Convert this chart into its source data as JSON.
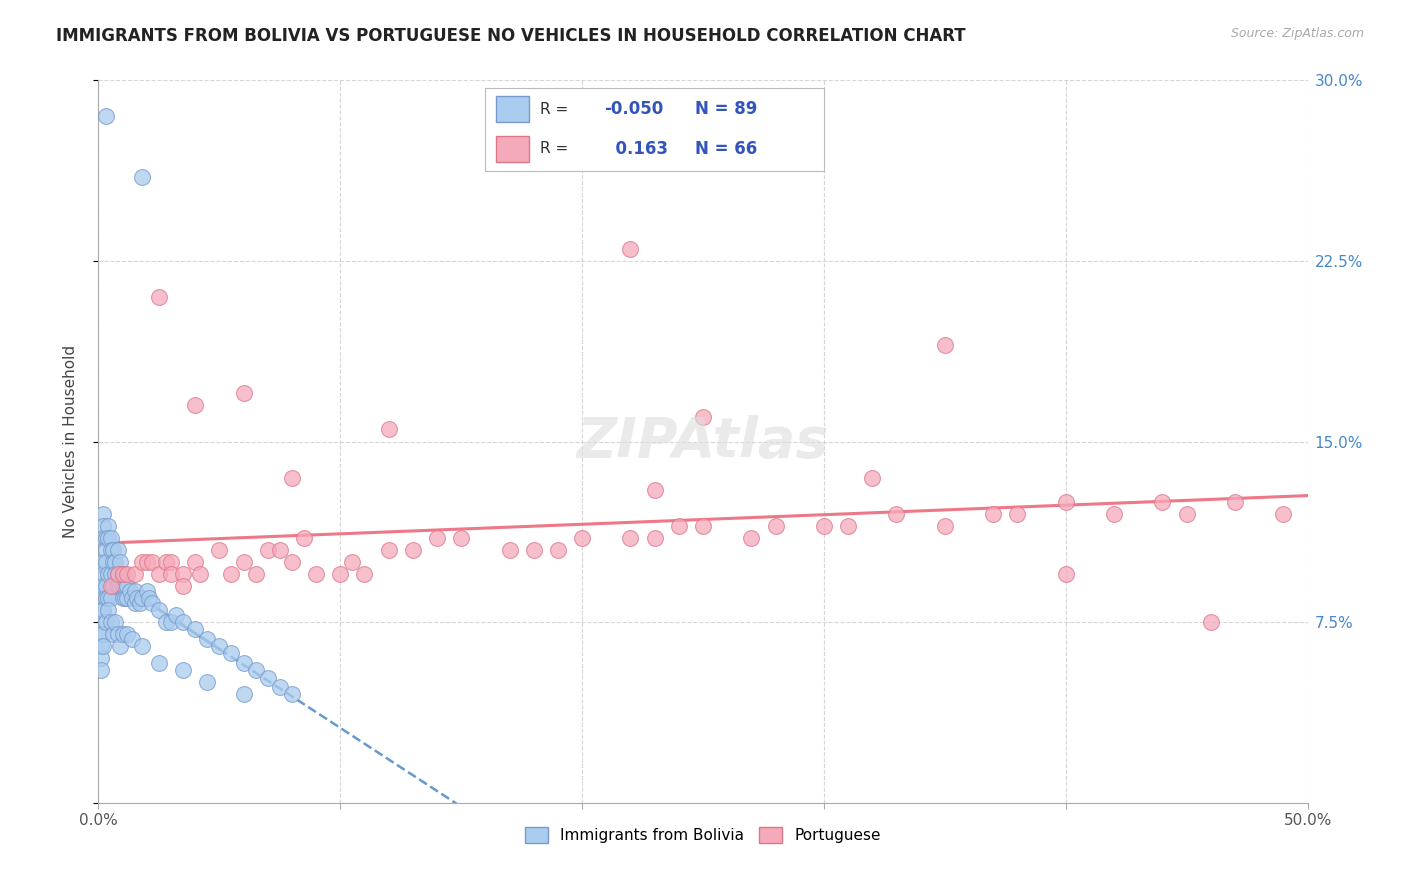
{
  "title": "IMMIGRANTS FROM BOLIVIA VS PORTUGUESE NO VEHICLES IN HOUSEHOLD CORRELATION CHART",
  "source": "Source: ZipAtlas.com",
  "ylabel": "No Vehicles in Household",
  "xlim": [
    0.0,
    50.0
  ],
  "ylim": [
    0.0,
    30.0
  ],
  "xticks": [
    0.0,
    10.0,
    20.0,
    30.0,
    40.0,
    50.0
  ],
  "yticks": [
    0.0,
    7.5,
    15.0,
    22.5,
    30.0
  ],
  "xticklabels": [
    "0.0%",
    "",
    "",
    "",
    "",
    "50.0%"
  ],
  "yticklabels_right": [
    "",
    "7.5%",
    "15.0%",
    "22.5%",
    "30.0%"
  ],
  "bolivia_color": "#aaccee",
  "portuguese_color": "#f5aabb",
  "bolivia_edge": "#7799cc",
  "portuguese_edge": "#dd7788",
  "bolivia_R": -0.05,
  "bolivia_N": 89,
  "portuguese_R": 0.163,
  "portuguese_N": 66,
  "bolivia_line_color": "#6699cc",
  "portuguese_line_color": "#ee7788",
  "legend_R_color": "#3355bb",
  "background_color": "#ffffff",
  "grid_color": "#cccccc",
  "watermark": "ZIPAtlas",
  "bolivia_x": [
    0.3,
    1.8,
    0.1,
    0.1,
    0.1,
    0.1,
    0.1,
    0.1,
    0.2,
    0.2,
    0.2,
    0.2,
    0.2,
    0.2,
    0.2,
    0.3,
    0.3,
    0.3,
    0.3,
    0.3,
    0.4,
    0.4,
    0.4,
    0.4,
    0.5,
    0.5,
    0.5,
    0.5,
    0.6,
    0.6,
    0.6,
    0.7,
    0.7,
    0.8,
    0.8,
    0.8,
    0.9,
    0.9,
    1.0,
    1.0,
    1.0,
    1.1,
    1.1,
    1.2,
    1.2,
    1.3,
    1.4,
    1.5,
    1.5,
    1.6,
    1.7,
    1.8,
    2.0,
    2.1,
    2.2,
    2.5,
    2.8,
    3.0,
    3.2,
    3.5,
    4.0,
    4.5,
    5.0,
    5.5,
    6.0,
    6.5,
    7.0,
    7.5,
    8.0,
    0.1,
    0.1,
    0.2,
    0.2,
    0.3,
    0.4,
    0.5,
    0.6,
    0.7,
    0.8,
    0.9,
    1.0,
    1.2,
    1.4,
    1.8,
    2.5,
    3.5,
    4.5,
    6.0
  ],
  "bolivia_y": [
    28.5,
    26.0,
    9.0,
    8.5,
    8.0,
    7.5,
    7.0,
    6.5,
    12.0,
    11.5,
    11.0,
    10.0,
    9.5,
    9.0,
    8.0,
    11.0,
    10.5,
    10.0,
    9.0,
    8.5,
    11.5,
    11.0,
    9.5,
    8.5,
    11.0,
    10.5,
    9.5,
    8.5,
    10.5,
    10.0,
    9.0,
    10.0,
    9.5,
    10.5,
    9.5,
    9.0,
    10.0,
    9.0,
    9.5,
    9.0,
    8.5,
    9.0,
    8.5,
    9.0,
    8.5,
    8.8,
    8.5,
    8.8,
    8.3,
    8.5,
    8.3,
    8.5,
    8.8,
    8.5,
    8.3,
    8.0,
    7.5,
    7.5,
    7.8,
    7.5,
    7.2,
    6.8,
    6.5,
    6.2,
    5.8,
    5.5,
    5.2,
    4.8,
    4.5,
    6.0,
    5.5,
    7.0,
    6.5,
    7.5,
    8.0,
    7.5,
    7.0,
    7.5,
    7.0,
    6.5,
    7.0,
    7.0,
    6.8,
    6.5,
    5.8,
    5.5,
    5.0,
    4.5
  ],
  "portuguese_x": [
    0.5,
    0.8,
    1.0,
    1.2,
    1.5,
    1.8,
    2.0,
    2.2,
    2.5,
    2.8,
    3.0,
    3.0,
    3.5,
    3.5,
    4.0,
    4.2,
    5.0,
    5.5,
    6.0,
    6.5,
    7.0,
    7.5,
    8.0,
    8.5,
    9.0,
    10.0,
    10.5,
    11.0,
    12.0,
    13.0,
    14.0,
    15.0,
    17.0,
    18.0,
    19.0,
    20.0,
    22.0,
    23.0,
    24.0,
    25.0,
    27.0,
    28.0,
    30.0,
    31.0,
    33.0,
    35.0,
    37.0,
    38.0,
    40.0,
    42.0,
    44.0,
    45.0,
    47.0,
    49.0,
    2.5,
    4.0,
    6.0,
    8.0,
    12.0,
    22.0,
    35.0,
    25.0,
    32.0,
    40.0,
    46.0,
    23.0
  ],
  "portuguese_y": [
    9.0,
    9.5,
    9.5,
    9.5,
    9.5,
    10.0,
    10.0,
    10.0,
    9.5,
    10.0,
    10.0,
    9.5,
    9.5,
    9.0,
    10.0,
    9.5,
    10.5,
    9.5,
    10.0,
    9.5,
    10.5,
    10.5,
    10.0,
    11.0,
    9.5,
    9.5,
    10.0,
    9.5,
    10.5,
    10.5,
    11.0,
    11.0,
    10.5,
    10.5,
    10.5,
    11.0,
    11.0,
    11.0,
    11.5,
    11.5,
    11.0,
    11.5,
    11.5,
    11.5,
    12.0,
    11.5,
    12.0,
    12.0,
    12.5,
    12.0,
    12.5,
    12.0,
    12.5,
    12.0,
    21.0,
    16.5,
    17.0,
    13.5,
    15.5,
    23.0,
    19.0,
    16.0,
    13.5,
    9.5,
    7.5,
    13.0
  ]
}
